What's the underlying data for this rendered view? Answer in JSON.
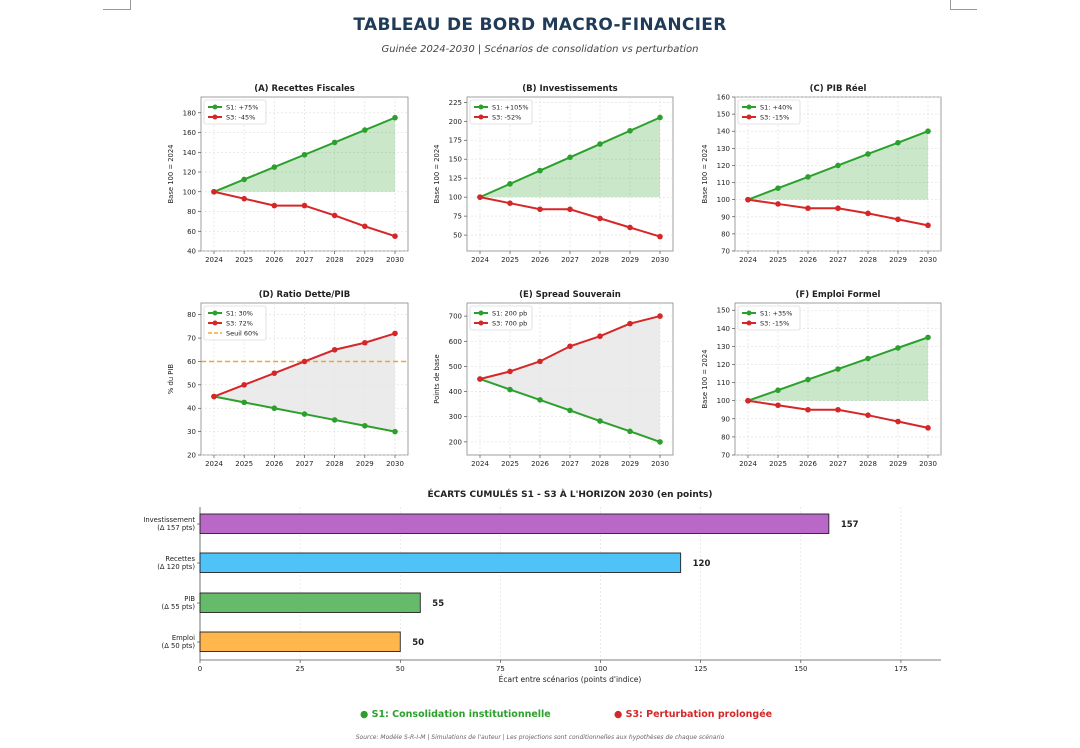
{
  "header": {
    "title": "TABLEAU DE BORD MACRO-FINANCIER",
    "subtitle": "Guinée 2024-2030 | Scénarios de consolidation vs perturbation"
  },
  "colors": {
    "s1": "#2ca02c",
    "s3": "#d62728",
    "threshold": "#f0a830"
  },
  "chart_data": [
    {
      "id": "A",
      "type": "line",
      "title": "(A) Recettes Fiscales",
      "ylabel": "Base 100 = 2024",
      "fill": "s1-vs-base",
      "grid": true,
      "legend": "top-left",
      "x": [
        2024,
        2025,
        2026,
        2027,
        2028,
        2029,
        2030
      ],
      "ylim": [
        40,
        196
      ],
      "yticks": [
        40,
        60,
        80,
        100,
        120,
        140,
        160,
        180
      ],
      "series": [
        {
          "name": "S1: +75%",
          "color": "#2ca02c",
          "values": [
            100,
            112.5,
            125,
            137.5,
            150,
            162.5,
            175
          ]
        },
        {
          "name": "S3: -45%",
          "color": "#d62728",
          "values": [
            100,
            93,
            86,
            86,
            76,
            65,
            55
          ]
        }
      ]
    },
    {
      "id": "B",
      "type": "line",
      "title": "(B) Investissements",
      "ylabel": "Base 100 = 2024",
      "fill": "s1-vs-base",
      "grid": true,
      "legend": "top-left",
      "x": [
        2024,
        2025,
        2026,
        2027,
        2028,
        2029,
        2030
      ],
      "ylim": [
        29,
        232
      ],
      "yticks": [
        50,
        75,
        100,
        125,
        150,
        175,
        200,
        225
      ],
      "series": [
        {
          "name": "S1: +105%",
          "color": "#2ca02c",
          "values": [
            100,
            117.5,
            135,
            152.5,
            170,
            187.5,
            205
          ]
        },
        {
          "name": "S3: -52%",
          "color": "#d62728",
          "values": [
            100,
            92,
            84,
            84,
            72,
            60,
            48
          ]
        }
      ]
    },
    {
      "id": "C",
      "type": "line",
      "title": "(C) PIB Réel",
      "ylabel": "Base 100 = 2024",
      "fill": "s1-vs-base",
      "grid": true,
      "legend": "top-left",
      "x": [
        2024,
        2025,
        2026,
        2027,
        2028,
        2029,
        2030
      ],
      "ylim": [
        70,
        160
      ],
      "yticks": [
        70,
        80,
        90,
        100,
        110,
        120,
        130,
        140,
        150,
        160
      ],
      "series": [
        {
          "name": "S1: +40%",
          "color": "#2ca02c",
          "values": [
            100,
            106.7,
            113.3,
            120,
            126.7,
            133.3,
            140
          ]
        },
        {
          "name": "S3: -15%",
          "color": "#d62728",
          "values": [
            100,
            97.5,
            95,
            95,
            92,
            88.5,
            85
          ]
        }
      ]
    },
    {
      "id": "D",
      "type": "line",
      "title": "(D) Ratio Dette/PIB",
      "ylabel": "% du PIB",
      "fill": "between",
      "grid": true,
      "legend": "top-left",
      "x": [
        2024,
        2025,
        2026,
        2027,
        2028,
        2029,
        2030
      ],
      "ylim": [
        20,
        85
      ],
      "yticks": [
        20,
        30,
        40,
        50,
        60,
        70,
        80
      ],
      "threshold": {
        "name": "Seuil 60%",
        "value": 60
      },
      "series": [
        {
          "name": "S1: 30%",
          "color": "#2ca02c",
          "values": [
            45,
            42.5,
            40,
            37.5,
            35,
            32.5,
            30
          ]
        },
        {
          "name": "S3: 72%",
          "color": "#d62728",
          "values": [
            45,
            50,
            55,
            60,
            65,
            68,
            72
          ]
        }
      ]
    },
    {
      "id": "E",
      "type": "line",
      "title": "(E) Spread Souverain",
      "ylabel": "Points de base",
      "fill": "between",
      "grid": true,
      "legend": "top-left",
      "x": [
        2024,
        2025,
        2026,
        2027,
        2028,
        2029,
        2030
      ],
      "ylim": [
        148,
        752
      ],
      "yticks": [
        200,
        300,
        400,
        500,
        600,
        700
      ],
      "series": [
        {
          "name": "S1: 200 pb",
          "color": "#2ca02c",
          "values": [
            450,
            408,
            367,
            325,
            283,
            242,
            200
          ]
        },
        {
          "name": "S3: 700 pb",
          "color": "#d62728",
          "values": [
            450,
            480,
            520,
            580,
            620,
            670,
            700
          ]
        }
      ]
    },
    {
      "id": "F",
      "type": "line",
      "title": "(F) Emploi Formel",
      "ylabel": "Base 100 = 2024",
      "fill": "s1-vs-base",
      "grid": true,
      "legend": "top-left",
      "x": [
        2024,
        2025,
        2026,
        2027,
        2028,
        2029,
        2030
      ],
      "ylim": [
        70,
        154
      ],
      "yticks": [
        70,
        80,
        90,
        100,
        110,
        120,
        130,
        140,
        150
      ],
      "series": [
        {
          "name": "S1: +35%",
          "color": "#2ca02c",
          "values": [
            100,
            105.8,
            111.7,
            117.5,
            123.3,
            129.2,
            135
          ]
        },
        {
          "name": "S3: -15%",
          "color": "#d62728",
          "values": [
            100,
            97.5,
            95,
            95,
            92,
            88.5,
            85
          ]
        }
      ]
    },
    {
      "id": "G",
      "type": "bar",
      "orientation": "horizontal",
      "title": "ÉCARTS CUMULÉS S1 - S3 À L'HORIZON 2030 (en points)",
      "xlabel": "Écart entre scénarios (points d'indice)",
      "xlim": [
        0,
        185
      ],
      "xticks": [
        0,
        25,
        50,
        75,
        100,
        125,
        150,
        175
      ],
      "grid": true,
      "categories": [
        "Investissement\n(Δ 157 pts)",
        "Recettes\n(Δ 120 pts)",
        "PIB\n(Δ 55 pts)",
        "Emploi\n(Δ 50 pts)"
      ],
      "values": [
        157,
        120,
        55,
        50
      ],
      "colors": [
        "#ba68c8",
        "#4fc3f7",
        "#66bb6a",
        "#ffb74d"
      ]
    }
  ],
  "footer": {
    "legend_s1": "● S1: Consolidation institutionnelle",
    "legend_s3": "● S3: Perturbation prolongée",
    "source": "Source: Modèle S-R-I-M | Simulations de l'auteur | Les projections sont conditionnelles aux hypothèses de chaque scénario"
  }
}
